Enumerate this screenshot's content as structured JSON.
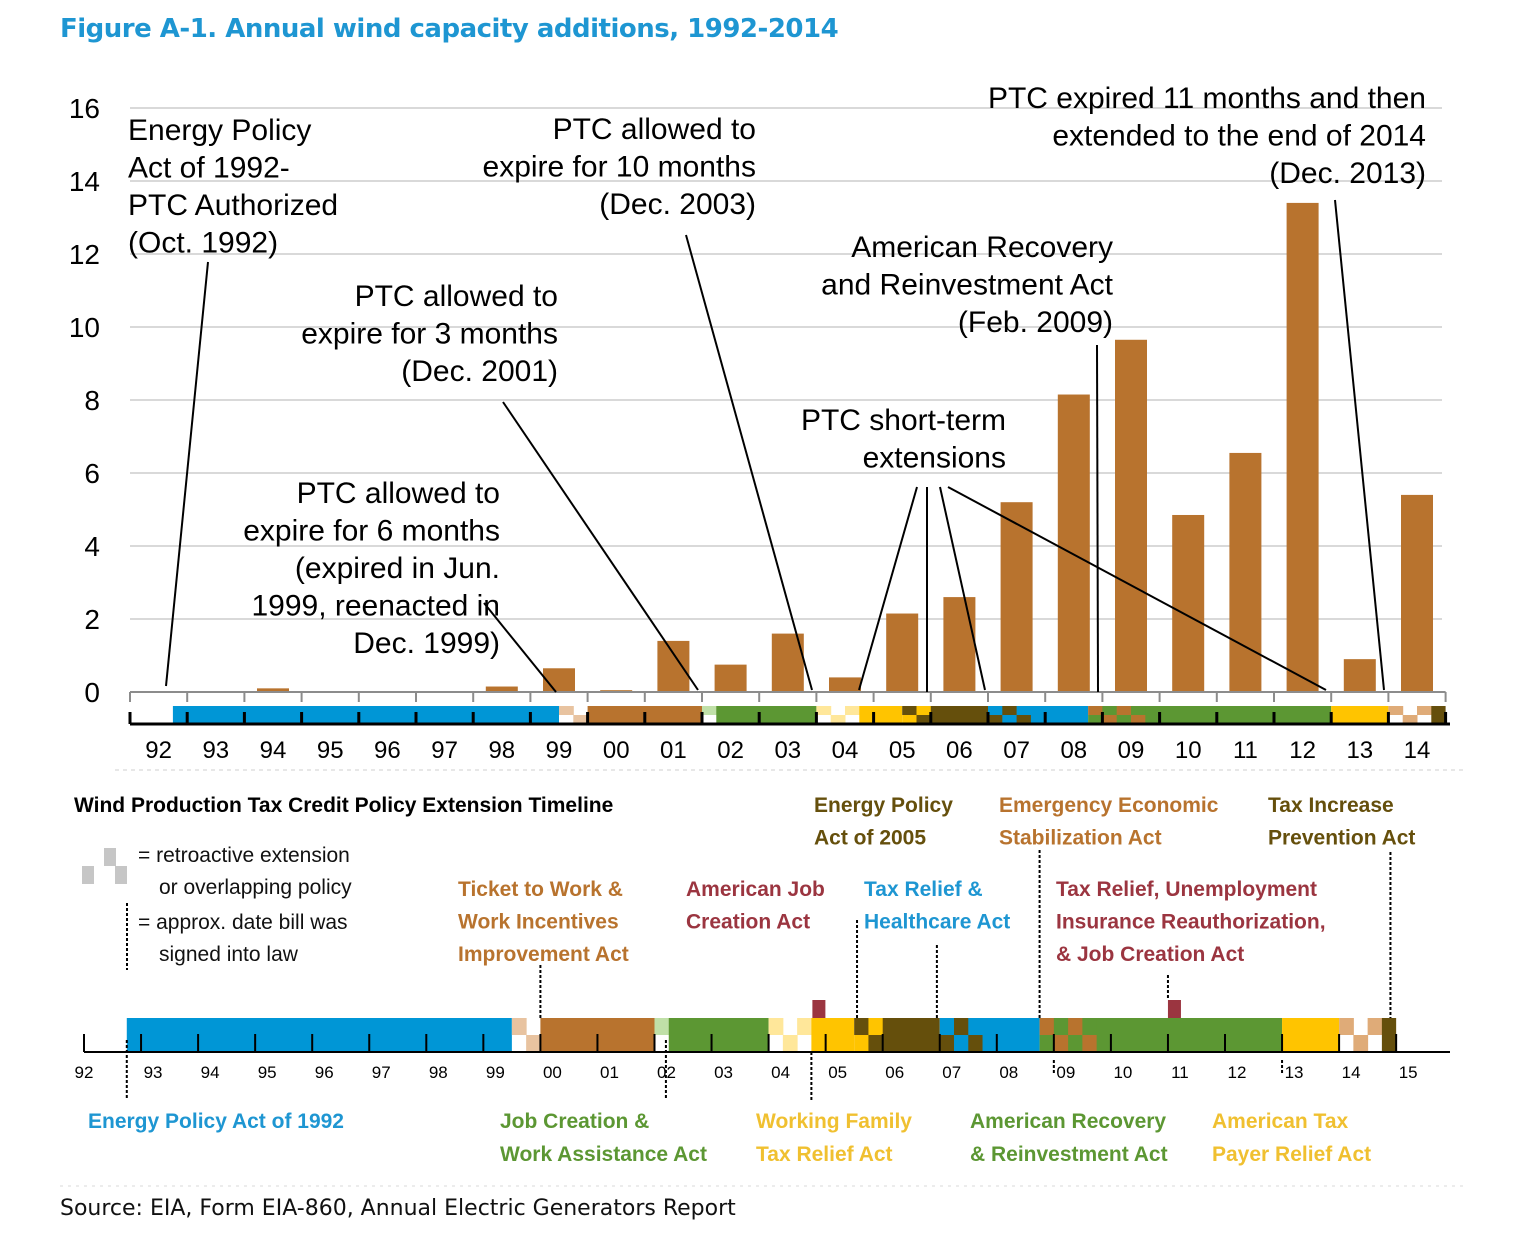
{
  "figure": {
    "title": "Figure A-1. Annual wind capacity additions, 1992-2014",
    "source": "Source: EIA, Form EIA-860, Annual Electric Generators Report"
  },
  "colors": {
    "title": "#1e96d2",
    "bar": "#b8732e",
    "blue": "#0096d6",
    "brown": "#b8732e",
    "lightbrown": "#e8c3a0",
    "tan": "#dfab78",
    "lightgreen": "#c0e0a8",
    "green": "#5c9733",
    "lightyellow": "#ffe79a",
    "yellow": "#ffc400",
    "darkolive": "#654f0c",
    "maroon": "#9b3540",
    "gray": "#c6c6c6"
  },
  "chart_data": {
    "type": "bar",
    "title": "Figure A-1. Annual wind capacity additions, 1992-2014",
    "xlabel": "",
    "ylabel": "",
    "ylim": [
      0,
      16
    ],
    "yticks": [
      "0",
      "2",
      "4",
      "6",
      "8",
      "10",
      "12",
      "14",
      "16"
    ],
    "grid": true,
    "categories": [
      "92",
      "93",
      "94",
      "95",
      "96",
      "97",
      "98",
      "99",
      "00",
      "01",
      "02",
      "03",
      "04",
      "05",
      "06",
      "07",
      "08",
      "09",
      "10",
      "11",
      "12",
      "13",
      "14"
    ],
    "values": [
      0,
      0,
      0.1,
      0,
      0,
      0,
      0.15,
      0.65,
      0.05,
      1.4,
      0.75,
      1.6,
      0.4,
      2.15,
      2.6,
      5.2,
      8.15,
      9.65,
      4.85,
      6.55,
      13.4,
      0.9,
      5.4
    ],
    "annotations": [
      {
        "id": "epa1992",
        "lines": [
          "Energy Policy",
          "Act of 1992-",
          "PTC Authorized",
          "(Oct. 1992)"
        ],
        "align": "left",
        "points_to": [
          1992.75
        ]
      },
      {
        "id": "exp10",
        "lines": [
          "PTC allowed to",
          "expire for 10 months",
          "(Dec. 2003)"
        ],
        "align": "right",
        "points_to": [
          2004.0
        ]
      },
      {
        "id": "exp3",
        "lines": [
          "PTC allowed to",
          "expire for 3 months",
          "(Dec. 2001)"
        ],
        "align": "right",
        "points_to": [
          2002.0
        ]
      },
      {
        "id": "exp6",
        "lines": [
          "PTC allowed to",
          "expire for 6 months",
          "(expired in Jun.",
          "1999, reenacted in",
          "Dec. 1999)"
        ],
        "align": "right",
        "points_to": [
          2000.0
        ]
      },
      {
        "id": "arra",
        "lines": [
          "American Recovery",
          "and Reinvestment Act",
          "(Feb. 2009)"
        ],
        "align": "right",
        "points_to": [
          2009.15
        ]
      },
      {
        "id": "short",
        "lines": [
          "PTC short-term",
          "extensions"
        ],
        "align": "right",
        "points_to": [
          2004.85,
          2005.75,
          2007.0,
          2013.0
        ]
      },
      {
        "id": "exp11",
        "lines": [
          "PTC expired 11 months and then",
          "extended to the end of 2014",
          "(Dec. 2013)"
        ],
        "align": "right",
        "points_to": [
          2014.0
        ]
      }
    ]
  },
  "timeline": {
    "title": "Wind Production Tax Credit Policy Extension Timeline",
    "legend": {
      "checker_line1": "= retroactive extension",
      "checker_line2": "or overlapping policy",
      "dash_line1": "= approx. date bill was",
      "dash_line2": "signed into law"
    },
    "ticks": [
      "92",
      "93",
      "94",
      "95",
      "96",
      "97",
      "98",
      "99",
      "00",
      "01",
      "02",
      "03",
      "04",
      "05",
      "06",
      "07",
      "08",
      "09",
      "10",
      "11",
      "12",
      "13",
      "14",
      "15"
    ],
    "acts_top": [
      {
        "name": "Ticket to Work & Work Incentives Improvement Act",
        "lines": [
          "Ticket to Work &",
          "Work Incentives",
          "Improvement Act"
        ],
        "color": "#b8732e"
      },
      {
        "name": "American Job Creation Act",
        "lines": [
          "American Job",
          "Creation Act"
        ],
        "color": "#9b3540"
      },
      {
        "name": "Tax Relief & Healthcare Act",
        "lines": [
          "Tax Relief &",
          "Healthcare Act"
        ],
        "color": "#1e96d2"
      },
      {
        "name": "Tax Relief, Unemployment Insurance Reauthorization, & Job Creation Act",
        "lines": [
          "Tax Relief, Unemployment",
          "Insurance Reauthorization,",
          "& Job Creation Act"
        ],
        "color": "#9b3540"
      },
      {
        "name": "Energy Policy Act of 2005",
        "lines": [
          "Energy Policy",
          "Act of 2005"
        ],
        "color": "#654f0c"
      },
      {
        "name": "Emergency Economic Stabilization Act",
        "lines": [
          "Emergency Economic",
          "Stabilization Act"
        ],
        "color": "#b8732e"
      },
      {
        "name": "Tax Increase Prevention Act",
        "lines": [
          "Tax Increase",
          "Prevention Act"
        ],
        "color": "#654f0c"
      }
    ],
    "acts_bottom": [
      {
        "name": "Energy Policy Act of 1992",
        "lines": [
          "Energy Policy Act of 1992"
        ],
        "color": "#1e96d2"
      },
      {
        "name": "Job Creation & Work Assistance Act",
        "lines": [
          "Job Creation &",
          "Work Assistance Act"
        ],
        "color": "#5c9733"
      },
      {
        "name": "Working Family Tax Relief Act",
        "lines": [
          "Working Family",
          "Tax Relief Act"
        ],
        "color": "#f0c030"
      },
      {
        "name": "American Recovery & Reinvestment Act",
        "lines": [
          "American Recovery",
          "& Reinvestment Act"
        ],
        "color": "#5c9733"
      },
      {
        "name": "American Tax Payer Relief Act",
        "lines": [
          "American Tax",
          "Payer Relief Act"
        ],
        "color": "#f0c030"
      }
    ]
  }
}
